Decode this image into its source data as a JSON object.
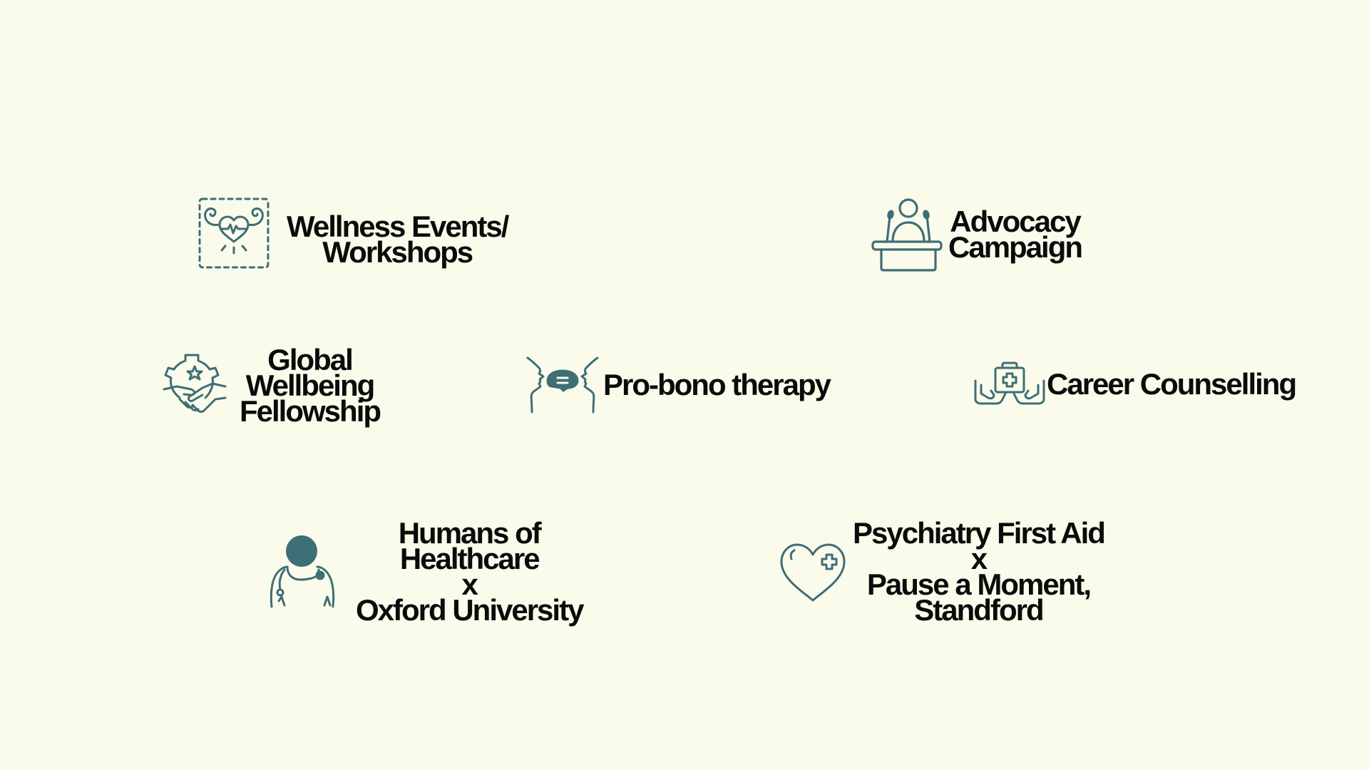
{
  "colors": {
    "background": "#fbfbeb",
    "icon": "#3e6e76",
    "text": "#0b0b0b"
  },
  "items": {
    "wellness": {
      "icon": "flexing-heart-icon",
      "lines": [
        "Wellness Events/",
        "Workshops"
      ]
    },
    "advocacy": {
      "icon": "podium-speaker-icon",
      "lines": [
        "Advocacy",
        "Campaign"
      ]
    },
    "global": {
      "icon": "gear-handshake-icon",
      "lines": [
        "Global",
        "Wellbeing",
        "Fellowship"
      ]
    },
    "therapy": {
      "icon": "conversation-faces-icon",
      "lines": [
        "Pro-bono therapy"
      ]
    },
    "career": {
      "icon": "hands-medical-kit-icon",
      "lines": [
        "Career Counselling"
      ]
    },
    "humans": {
      "icon": "doctor-stethoscope-icon",
      "lines": [
        "Humans of",
        "Healthcare",
        "x",
        "Oxford University"
      ]
    },
    "psychiatry": {
      "icon": "heart-plus-icon",
      "lines": [
        "Psychiatry First Aid",
        "x",
        "Pause a Moment,",
        "Standford"
      ]
    }
  }
}
